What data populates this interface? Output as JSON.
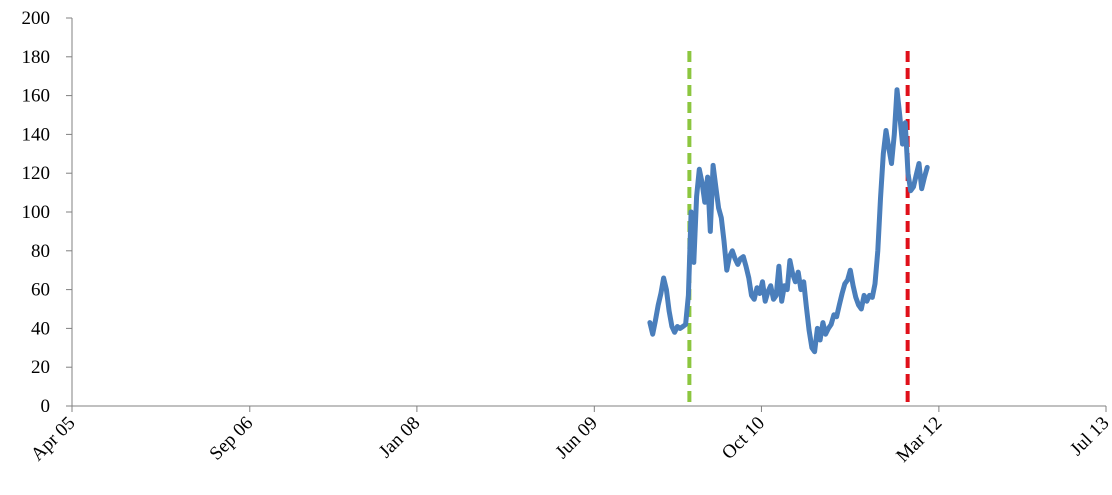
{
  "chart_data": {
    "type": "line",
    "title": "",
    "xlabel": "",
    "ylabel": "",
    "ylim": [
      0,
      200
    ],
    "yticks": [
      0,
      20,
      40,
      60,
      80,
      100,
      120,
      140,
      160,
      180,
      200
    ],
    "xlim": [
      "2005-04-01",
      "2013-07-01"
    ],
    "xticks": [
      {
        "date": "2005-04-01",
        "label": "Apr 05"
      },
      {
        "date": "2006-09-01",
        "label": "Sep 06"
      },
      {
        "date": "2008-01-01",
        "label": "Jan 08"
      },
      {
        "date": "2009-06-01",
        "label": "Jun 09"
      },
      {
        "date": "2010-10-01",
        "label": "Oct 10"
      },
      {
        "date": "2012-03-01",
        "label": "Mar 12"
      },
      {
        "date": "2013-07-01",
        "label": "Jul 13"
      }
    ],
    "grid": false,
    "legend": "none",
    "colors": {
      "series": "#4a7ebb",
      "vline_green": "#8cc63f",
      "vline_red": "#e0101a",
      "axis": "#808080"
    },
    "series": [
      {
        "x": [
          "2009-11-10",
          "2009-11-18",
          "2009-11-26",
          "2009-12-04",
          "2009-12-12",
          "2009-12-20",
          "2009-12-28",
          "2010-01-05",
          "2010-01-13",
          "2010-01-21",
          "2010-01-29",
          "2010-02-06",
          "2010-02-14",
          "2010-02-22",
          "2010-03-02",
          "2010-03-10",
          "2010-03-18",
          "2010-03-26",
          "2010-04-03",
          "2010-04-11",
          "2010-04-19",
          "2010-04-27",
          "2010-05-05",
          "2010-05-13",
          "2010-05-21",
          "2010-05-29",
          "2010-06-06",
          "2010-06-14",
          "2010-06-22",
          "2010-06-30",
          "2010-07-08",
          "2010-07-16",
          "2010-07-24",
          "2010-08-01",
          "2010-08-09",
          "2010-08-17",
          "2010-08-25",
          "2010-09-02",
          "2010-09-10",
          "2010-09-18",
          "2010-09-26",
          "2010-10-04",
          "2010-10-12",
          "2010-10-20",
          "2010-10-28",
          "2010-11-05",
          "2010-11-13",
          "2010-11-21",
          "2010-11-29",
          "2010-12-07",
          "2010-12-15",
          "2010-12-23",
          "2010-12-31",
          "2011-01-08",
          "2011-01-16",
          "2011-01-24",
          "2011-02-01",
          "2011-02-09",
          "2011-02-17",
          "2011-02-25",
          "2011-03-05",
          "2011-03-13",
          "2011-03-21",
          "2011-03-29",
          "2011-04-06",
          "2011-04-14",
          "2011-04-22",
          "2011-04-30",
          "2011-05-08",
          "2011-05-16",
          "2011-05-24",
          "2011-06-01",
          "2011-06-09",
          "2011-06-17",
          "2011-06-25",
          "2011-07-03",
          "2011-07-11",
          "2011-07-19",
          "2011-07-27",
          "2011-08-04",
          "2011-08-12",
          "2011-08-20",
          "2011-08-28",
          "2011-09-05",
          "2011-09-13",
          "2011-09-21",
          "2011-09-29",
          "2011-10-07",
          "2011-10-15",
          "2011-10-23",
          "2011-10-31",
          "2011-11-08",
          "2011-11-16",
          "2011-11-24",
          "2011-12-02",
          "2011-12-10",
          "2011-12-18",
          "2011-12-26",
          "2012-01-03",
          "2012-01-11",
          "2012-01-19",
          "2012-01-27"
        ],
        "values": [
          43,
          37,
          44,
          52,
          58,
          66,
          60,
          49,
          41,
          38,
          41,
          40,
          41,
          42,
          57,
          100,
          74,
          108,
          122,
          115,
          105,
          118,
          90,
          124,
          113,
          102,
          97,
          85,
          70,
          77,
          80,
          76,
          73,
          76,
          77,
          72,
          66,
          57,
          55,
          61,
          58,
          64,
          54,
          59,
          62,
          55,
          57,
          72,
          54,
          62,
          60,
          75,
          68,
          64,
          69,
          60,
          64,
          51,
          39,
          30,
          28,
          40,
          34,
          43,
          37,
          40,
          42,
          47,
          46,
          52,
          58,
          63,
          65,
          70,
          62,
          56,
          52,
          50,
          57,
          54,
          57,
          56,
          63,
          80,
          107,
          130,
          142,
          133,
          125,
          140,
          163,
          150,
          135,
          146,
          120,
          111,
          113,
          119,
          125,
          112,
          118,
          123
        ]
      }
    ],
    "vlines": [
      {
        "date": "2010-03-05",
        "color": "green",
        "style": "dashed"
      },
      {
        "date": "2011-12-01",
        "color": "red",
        "style": "dashed"
      }
    ]
  }
}
